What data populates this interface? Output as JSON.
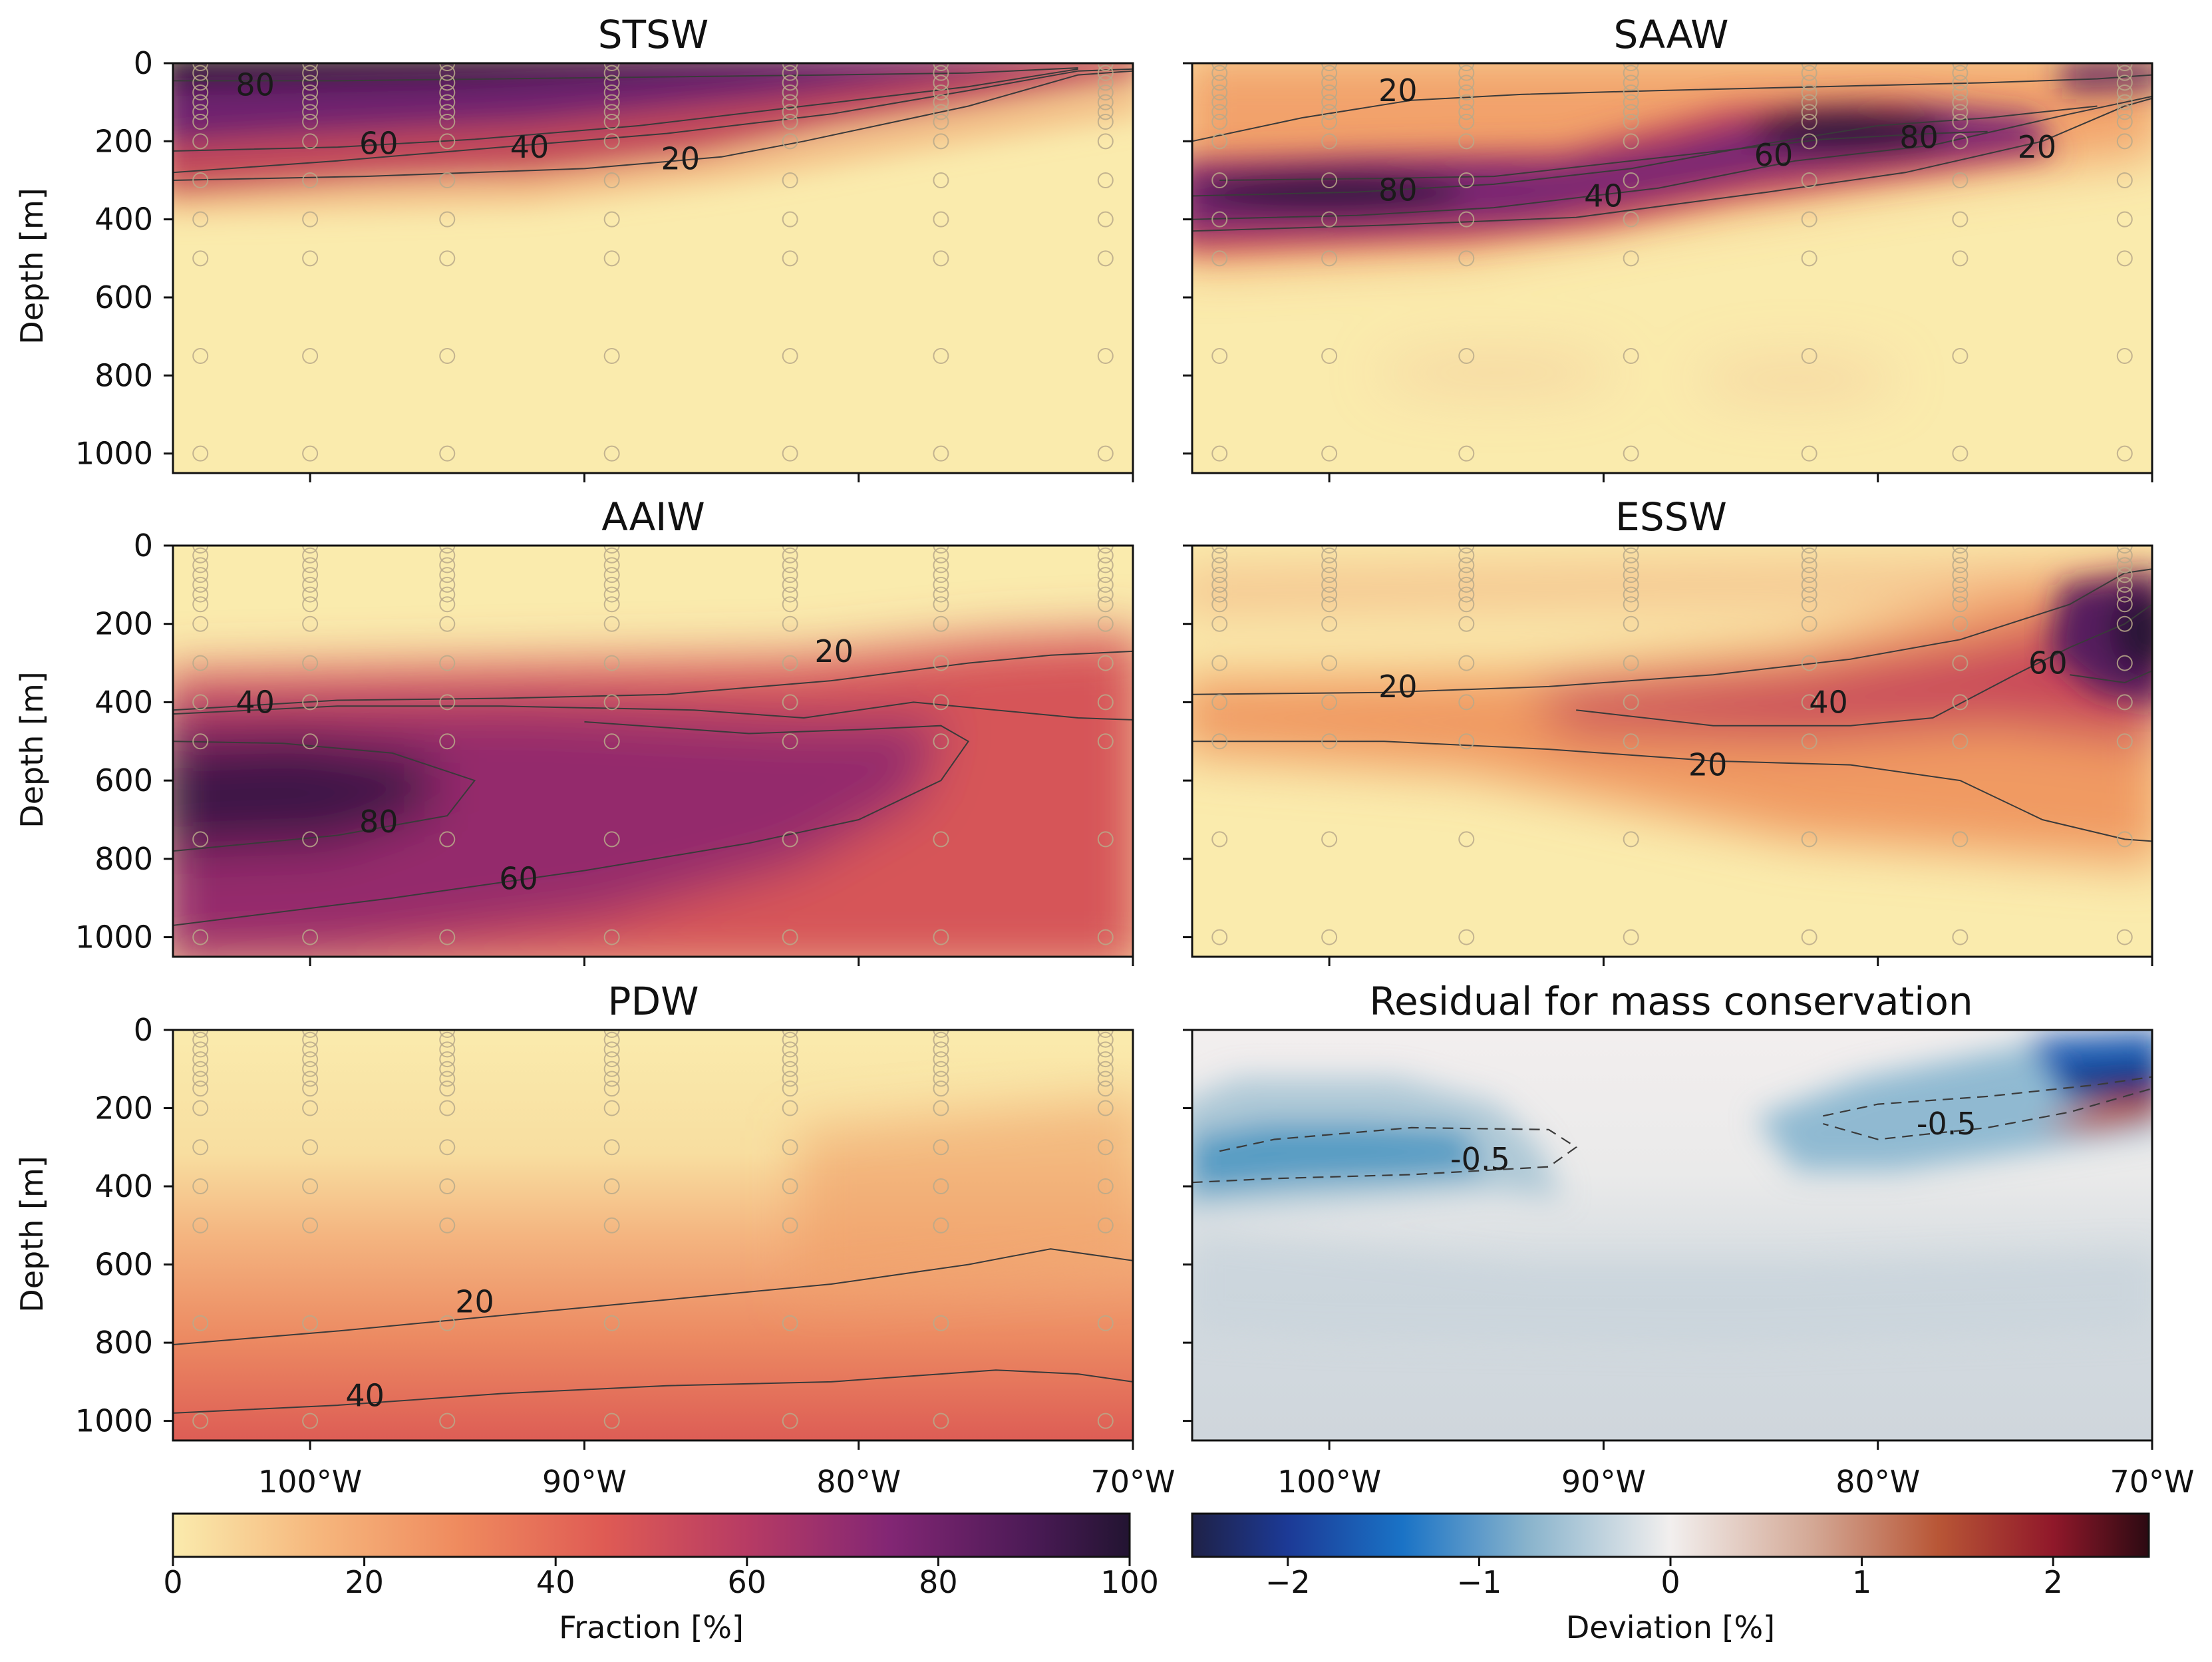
{
  "chart_data": [
    {
      "type": "heatmap",
      "title": "STSW",
      "ylabel": "Depth [m]",
      "xlabel": "",
      "xlim": [
        -105,
        -70
      ],
      "ylim": [
        1050,
        0
      ],
      "yticks": [
        0,
        200,
        400,
        600,
        800,
        1000
      ],
      "colormap": "fraction",
      "contours": [
        {
          "level": 20,
          "label": "20",
          "points": [
            [
              -105,
              300
            ],
            [
              -98,
              290
            ],
            [
              -90,
              270
            ],
            [
              -85,
              240
            ],
            [
              -82,
              200
            ],
            [
              -76,
              110
            ],
            [
              -72,
              30
            ],
            [
              -70,
              20
            ]
          ]
        },
        {
          "level": 40,
          "label": "40",
          "points": [
            [
              -105,
              280
            ],
            [
              -99,
              250
            ],
            [
              -93,
              215
            ],
            [
              -87,
              180
            ],
            [
              -81,
              130
            ],
            [
              -76,
              70
            ],
            [
              -72,
              20
            ],
            [
              -70,
              15
            ]
          ]
        },
        {
          "level": 60,
          "label": "60",
          "points": [
            [
              -105,
              225
            ],
            [
              -99,
              215
            ],
            [
              -94,
              195
            ],
            [
              -88,
              160
            ],
            [
              -82,
              110
            ],
            [
              -76,
              60
            ],
            [
              -72,
              15
            ]
          ]
        },
        {
          "level": 80,
          "label": "80",
          "points": [
            [
              -105,
              45
            ],
            [
              -99,
              45
            ],
            [
              -93,
              40
            ],
            [
              -87,
              35
            ],
            [
              -81,
              30
            ],
            [
              -76,
              25
            ],
            [
              -72,
              12
            ]
          ]
        }
      ],
      "contour_labels": [
        {
          "text": "80",
          "x": -102,
          "y": 55
        },
        {
          "text": "60",
          "x": -97.5,
          "y": 205
        },
        {
          "text": "40",
          "x": -92,
          "y": 215
        },
        {
          "text": "20",
          "x": -86.5,
          "y": 245
        }
      ]
    },
    {
      "type": "heatmap",
      "title": "SAAW",
      "ylabel": "",
      "xlabel": "",
      "xlim": [
        -105,
        -70
      ],
      "ylim": [
        1050,
        0
      ],
      "colormap": "fraction",
      "contours": [
        {
          "level": 20,
          "label": "20",
          "points": [
            [
              -105,
              430
            ],
            [
              -98,
              415
            ],
            [
              -91,
              395
            ],
            [
              -84,
              330
            ],
            [
              -79,
              280
            ],
            [
              -74,
              200
            ],
            [
              -71,
              110
            ],
            [
              -70,
              90
            ]
          ]
        },
        {
          "level": 40,
          "label": "40",
          "points": [
            [
              -105,
              400
            ],
            [
              -99,
              390
            ],
            [
              -94,
              370
            ],
            [
              -88,
              320
            ],
            [
              -83,
              250
            ],
            [
              -78,
              210
            ],
            [
              -73,
              130
            ],
            [
              -70,
              85
            ]
          ]
        },
        {
          "level": 60,
          "label": "60",
          "points": [
            [
              -105,
              340
            ],
            [
              -99,
              330
            ],
            [
              -94,
              310
            ],
            [
              -89,
              270
            ],
            [
              -84,
              205
            ],
            [
              -80,
              160
            ],
            [
              -76,
              140
            ],
            [
              -72,
              110
            ]
          ]
        },
        {
          "level": 80,
          "label": "80",
          "points": [
            [
              -104,
              300
            ],
            [
              -98,
              295
            ],
            [
              -94,
              290
            ],
            [
              -82,
              195
            ],
            [
              -78,
              180
            ],
            [
              -76,
              175
            ]
          ]
        },
        {
          "level": 20,
          "label": "20",
          "points": [
            [
              -105,
              200
            ],
            [
              -101,
              140
            ],
            [
              -97,
              95
            ],
            [
              -93,
              80
            ],
            [
              -88,
              70
            ],
            [
              -82,
              60
            ],
            [
              -76,
              50
            ],
            [
              -72,
              40
            ],
            [
              -70,
              30
            ]
          ]
        }
      ],
      "contour_labels": [
        {
          "text": "20",
          "x": -97.5,
          "y": 70
        },
        {
          "text": "80",
          "x": -97.5,
          "y": 325
        },
        {
          "text": "40",
          "x": -90,
          "y": 340
        },
        {
          "text": "60",
          "x": -83.8,
          "y": 235
        },
        {
          "text": "80",
          "x": -78.5,
          "y": 190
        },
        {
          "text": "20",
          "x": -74.2,
          "y": 215
        }
      ]
    },
    {
      "type": "heatmap",
      "title": "AAIW",
      "ylabel": "Depth [m]",
      "xlabel": "",
      "xlim": [
        -105,
        -70
      ],
      "ylim": [
        1050,
        0
      ],
      "yticks": [
        0,
        200,
        400,
        600,
        800,
        1000
      ],
      "colormap": "fraction",
      "contours": [
        {
          "level": 20,
          "label": "20",
          "points": [
            [
              -105,
              420
            ],
            [
              -99,
              395
            ],
            [
              -93,
              390
            ],
            [
              -87,
              380
            ],
            [
              -81,
              345
            ],
            [
              -76,
              300
            ],
            [
              -73,
              280
            ],
            [
              -70,
              270
            ]
          ]
        },
        {
          "level": 40,
          "label": "40",
          "points": [
            [
              -105,
              430
            ],
            [
              -99,
              410
            ],
            [
              -93,
              410
            ],
            [
              -86,
              420
            ],
            [
              -82,
              440
            ],
            [
              -78,
              400
            ],
            [
              -75,
              420
            ],
            [
              -72,
              440
            ],
            [
              -70,
              445
            ]
          ]
        },
        {
          "level": 60,
          "label": "60",
          "points": [
            [
              -105,
              970
            ],
            [
              -97,
              900
            ],
            [
              -90,
              830
            ],
            [
              -84,
              760
            ],
            [
              -80,
              700
            ],
            [
              -77,
              600
            ],
            [
              -76,
              500
            ],
            [
              -77,
              460
            ],
            [
              -80,
              470
            ],
            [
              -84,
              480
            ],
            [
              -90,
              450
            ]
          ]
        },
        {
          "level": 80,
          "label": "80",
          "points": [
            [
              -105,
              780
            ],
            [
              -99,
              740
            ],
            [
              -95,
              690
            ],
            [
              -94,
              600
            ],
            [
              -97,
              530
            ],
            [
              -101,
              505
            ],
            [
              -105,
              500
            ]
          ]
        }
      ],
      "contour_labels": [
        {
          "text": "40",
          "x": -102,
          "y": 400
        },
        {
          "text": "20",
          "x": -80.9,
          "y": 270
        },
        {
          "text": "80",
          "x": -97.5,
          "y": 705
        },
        {
          "text": "60",
          "x": -92.4,
          "y": 850
        }
      ]
    },
    {
      "type": "heatmap",
      "title": "ESSW",
      "ylabel": "",
      "xlabel": "",
      "xlim": [
        -105,
        -70
      ],
      "ylim": [
        1050,
        0
      ],
      "colormap": "fraction",
      "contours": [
        {
          "level": 20,
          "label": "20",
          "points": [
            [
              -105,
              500
            ],
            [
              -98,
              500
            ],
            [
              -92,
              520
            ],
            [
              -86,
              550
            ],
            [
              -81,
              560
            ],
            [
              -77,
              600
            ],
            [
              -74,
              700
            ],
            [
              -71,
              750
            ],
            [
              -70,
              755
            ]
          ]
        },
        {
          "level": 20,
          "label": "20",
          "points": [
            [
              -105,
              380
            ],
            [
              -98,
              375
            ],
            [
              -92,
              360
            ],
            [
              -86,
              330
            ],
            [
              -81,
              290
            ],
            [
              -77,
              240
            ],
            [
              -73,
              150
            ],
            [
              -71,
              70
            ],
            [
              -70,
              60
            ]
          ]
        },
        {
          "level": 40,
          "label": "40",
          "points": [
            [
              -91,
              420
            ],
            [
              -86,
              460
            ],
            [
              -81,
              460
            ],
            [
              -78,
              440
            ],
            [
              -75,
              330
            ],
            [
              -73,
              260
            ],
            [
              -71,
              200
            ],
            [
              -70,
              150
            ]
          ]
        },
        {
          "level": 60,
          "label": "60",
          "points": [
            [
              -73,
              330
            ],
            [
              -71,
              350
            ],
            [
              -70,
              320
            ]
          ]
        }
      ],
      "contour_labels": [
        {
          "text": "20",
          "x": -97.5,
          "y": 360
        },
        {
          "text": "40",
          "x": -81.8,
          "y": 400
        },
        {
          "text": "20",
          "x": -86.2,
          "y": 560
        },
        {
          "text": "60",
          "x": -73.8,
          "y": 300
        }
      ]
    },
    {
      "type": "heatmap",
      "title": "PDW",
      "ylabel": "Depth [m]",
      "xlabel": "",
      "xlim": [
        -105,
        -70
      ],
      "ylim": [
        1050,
        0
      ],
      "yticks": [
        0,
        200,
        400,
        600,
        800,
        1000
      ],
      "xticks": [
        "100°W",
        "90°W",
        "80°W",
        "70°W"
      ],
      "colormap": "fraction",
      "contours": [
        {
          "level": 20,
          "label": "20",
          "points": [
            [
              -105,
              805
            ],
            [
              -99,
              770
            ],
            [
              -93,
              730
            ],
            [
              -87,
              690
            ],
            [
              -81,
              650
            ],
            [
              -76,
              600
            ],
            [
              -73,
              560
            ],
            [
              -70,
              590
            ]
          ]
        },
        {
          "level": 40,
          "label": "40",
          "points": [
            [
              -105,
              980
            ],
            [
              -99,
              960
            ],
            [
              -93,
              930
            ],
            [
              -87,
              910
            ],
            [
              -81,
              900
            ],
            [
              -75,
              870
            ],
            [
              -72,
              880
            ],
            [
              -70,
              900
            ]
          ]
        }
      ],
      "contour_labels": [
        {
          "text": "20",
          "x": -94,
          "y": 695
        },
        {
          "text": "40",
          "x": -98,
          "y": 935
        }
      ]
    },
    {
      "type": "heatmap",
      "title": "Residual for mass conservation",
      "ylabel": "",
      "xlabel": "",
      "xlim": [
        -105,
        -70
      ],
      "ylim": [
        1050,
        0
      ],
      "xticks": [
        "100°W",
        "90°W",
        "80°W",
        "70°W"
      ],
      "colormap": "deviation",
      "contours": [
        {
          "level": -0.5,
          "label": "-0.5",
          "points": [
            [
              -104,
              310
            ],
            [
              -102,
              280
            ],
            [
              -97,
              250
            ],
            [
              -92,
              255
            ],
            [
              -91,
              300
            ],
            [
              -92,
              350
            ],
            [
              -97,
              370
            ],
            [
              -102,
              380
            ],
            [
              -105,
              390
            ]
          ]
        },
        {
          "level": -0.5,
          "label": "-0.5",
          "points": [
            [
              -82,
              220
            ],
            [
              -80,
              190
            ],
            [
              -76,
              170
            ],
            [
              -72,
              140
            ],
            [
              -70,
              120
            ],
            [
              -70,
              150
            ],
            [
              -73,
              210
            ],
            [
              -76,
              250
            ],
            [
              -80,
              280
            ],
            [
              -82,
              240
            ]
          ]
        }
      ],
      "contour_labels": [
        {
          "text": "-0.5",
          "x": -94.5,
          "y": 330
        },
        {
          "text": "-0.5",
          "x": -77.5,
          "y": 240
        }
      ]
    }
  ],
  "colorbars": [
    {
      "label": "Fraction [%]",
      "ticks": [
        "0",
        "20",
        "40",
        "60",
        "80",
        "100"
      ],
      "range": [
        0,
        100
      ]
    },
    {
      "label": "Deviation [%]",
      "ticks": [
        "−2",
        "−1",
        "0",
        "1",
        "2"
      ],
      "range": [
        -2.5,
        2.5
      ]
    }
  ],
  "stations_lon": [
    -104,
    -100,
    -95,
    -89,
    -82.5,
    -77,
    -71
  ],
  "station_depths": [
    0,
    25,
    50,
    75,
    100,
    125,
    150,
    200,
    300,
    400,
    500,
    750,
    1000
  ]
}
